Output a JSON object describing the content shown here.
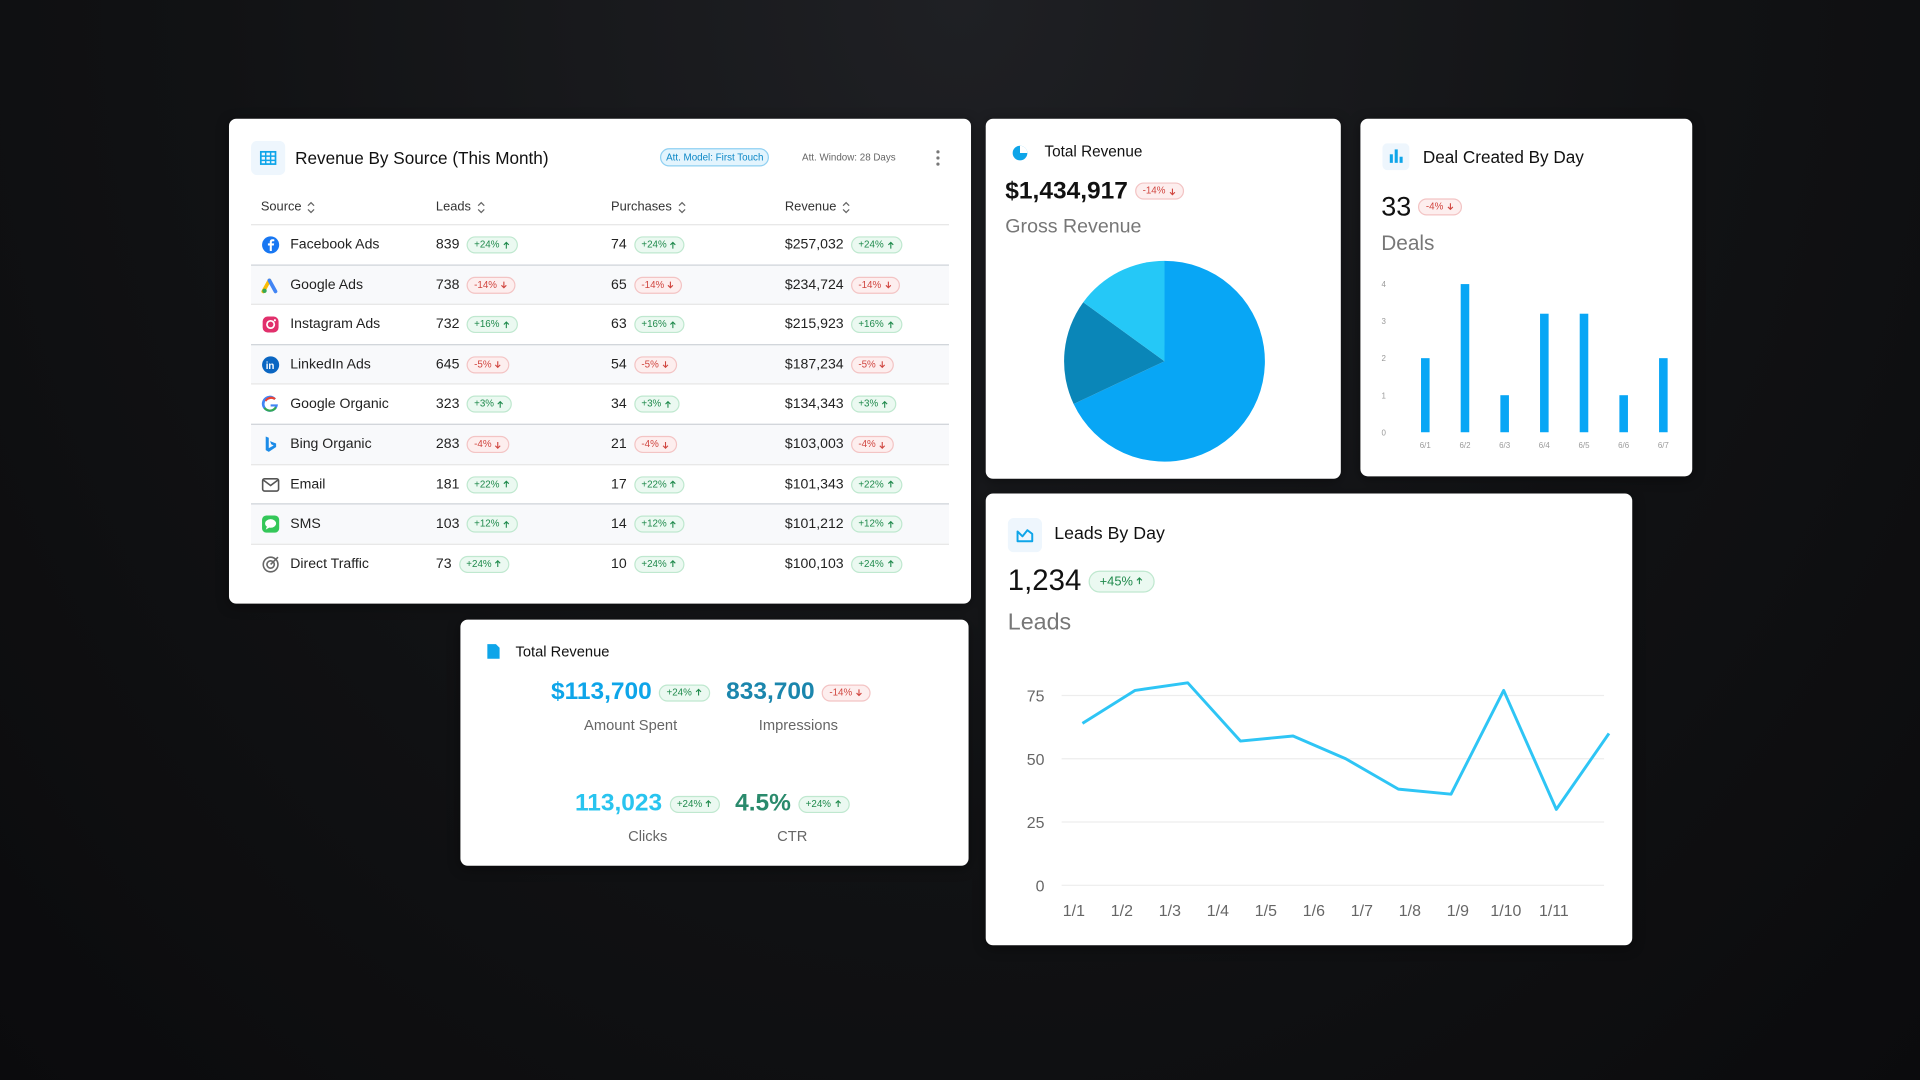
{
  "table": {
    "title": "Revenue By Source (This Month)",
    "tags": [
      "Att. Model: First Touch",
      "Att. Window: 28 Days"
    ],
    "columns": [
      "Source",
      "Leads",
      "Purchases",
      "Revenue"
    ],
    "rows": [
      [
        "Facebook Ads",
        "839",
        "+24%",
        "74",
        "+24%",
        "$257,032",
        "+24%"
      ],
      [
        "Google Ads",
        "738",
        "-14%",
        "65",
        "-14%",
        "$234,724",
        "-14%"
      ],
      [
        "Instagram Ads",
        "732",
        "+16%",
        "63",
        "+16%",
        "$215,923",
        "+16%"
      ],
      [
        "LinkedIn Ads",
        "645",
        "-5%",
        "54",
        "-5%",
        "$187,234",
        "-5%"
      ],
      [
        "Google Organic",
        "323",
        "+3%",
        "34",
        "+3%",
        "$134,343",
        "+3%"
      ],
      [
        "Bing Organic",
        "283",
        "-4%",
        "21",
        "-4%",
        "$103,003",
        "-4%"
      ],
      [
        "Email",
        "181",
        "+22%",
        "17",
        "+22%",
        "$101,343",
        "+22%"
      ],
      [
        "SMS",
        "103",
        "+12%",
        "14",
        "+12%",
        "$101,212",
        "+12%"
      ],
      [
        "Direct Traffic",
        "73",
        "+24%",
        "10",
        "+24%",
        "$100,103",
        "+24%"
      ]
    ]
  },
  "kpi": {
    "title": "Total Revenue",
    "items": [
      {
        "value": "$113,700",
        "change": "+24%",
        "label": "Amount Spent",
        "color": "#0ea5e9"
      },
      {
        "value": "833,700",
        "change": "-14%",
        "label": "Impressions",
        "color": "#1b86ad"
      },
      {
        "value": "113,023",
        "change": "+24%",
        "label": "Clicks",
        "color": "#29c4ef"
      },
      {
        "value": "4.5%",
        "change": "+24%",
        "label": "CTR",
        "color": "#2a8a6c"
      }
    ]
  },
  "chart_data": [
    {
      "type": "pie",
      "title": "Total Revenue",
      "value": "$1,434,917",
      "change": "-14%",
      "subtitle": "Gross Revenue",
      "values": [
        68,
        17,
        15
      ],
      "colors": [
        "#08a6f5",
        "#0a86b8",
        "#25c8f7"
      ]
    },
    {
      "type": "bar",
      "title": "Deal Created By Day",
      "value": "33",
      "change": "-4%",
      "subtitle": "Deals",
      "categories": [
        "6/1",
        "6/2",
        "6/3",
        "6/4",
        "6/5",
        "6/6",
        "6/7"
      ],
      "values": [
        2,
        4,
        1,
        3.2,
        3.2,
        1,
        2
      ],
      "color": "#08a6f5",
      "ylim": [
        0,
        4
      ],
      "yticks": [
        0,
        1,
        2,
        3,
        4
      ]
    },
    {
      "type": "line",
      "title": "Leads By Day",
      "value": "1,234",
      "change": "+45%",
      "subtitle": "Leads",
      "categories": [
        "1/1",
        "1/2",
        "1/3",
        "1/4",
        "1/5",
        "1/6",
        "1/7",
        "1/8",
        "1/9",
        "1/10",
        "1/11"
      ],
      "values": [
        64,
        77,
        80,
        57,
        59,
        50,
        38,
        36,
        77,
        30,
        60
      ],
      "color": "#2ec5f5",
      "ylim": [
        0,
        85
      ],
      "yticks": [
        0,
        25,
        50,
        75
      ],
      "grid": true
    }
  ]
}
